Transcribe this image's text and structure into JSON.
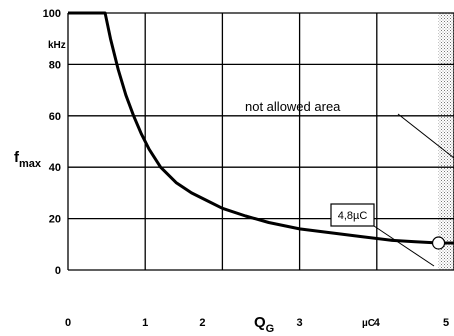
{
  "chart_data": {
    "type": "line",
    "title": "",
    "xlabel": "Q",
    "xlabel_sub": "G",
    "x_unit": "µC",
    "ylabel": "f",
    "ylabel_sub": "max",
    "y_unit": "kHz",
    "xlim": [
      0,
      5
    ],
    "ylim": [
      0,
      100
    ],
    "x_ticks": [
      0,
      1,
      2,
      3,
      4,
      5
    ],
    "y_ticks": [
      0,
      20,
      40,
      60,
      80,
      100
    ],
    "grid": true,
    "series": [
      {
        "x": [
          0.0,
          0.3,
          0.48,
          0.55,
          0.65,
          0.75,
          0.85,
          0.95,
          1.05,
          1.2,
          1.4,
          1.6,
          1.8,
          2.0,
          2.3,
          2.6,
          3.0,
          3.4,
          3.8,
          4.2,
          4.5,
          4.8,
          5.0
        ],
        "y": [
          100,
          100,
          100,
          90,
          78,
          68,
          60,
          53,
          47,
          40,
          34,
          30,
          27,
          24,
          21,
          18.5,
          16,
          14.5,
          13,
          11.5,
          11,
          10.5,
          10.5
        ]
      }
    ],
    "annotations": [
      {
        "text": "not allowed area",
        "x": 3.4,
        "y": 59
      },
      {
        "text": "4,8µC",
        "x": 4.8,
        "y": 10.5
      }
    ],
    "not_allowed_region": {
      "x_from": 4.8,
      "x_to": 5.0
    }
  }
}
